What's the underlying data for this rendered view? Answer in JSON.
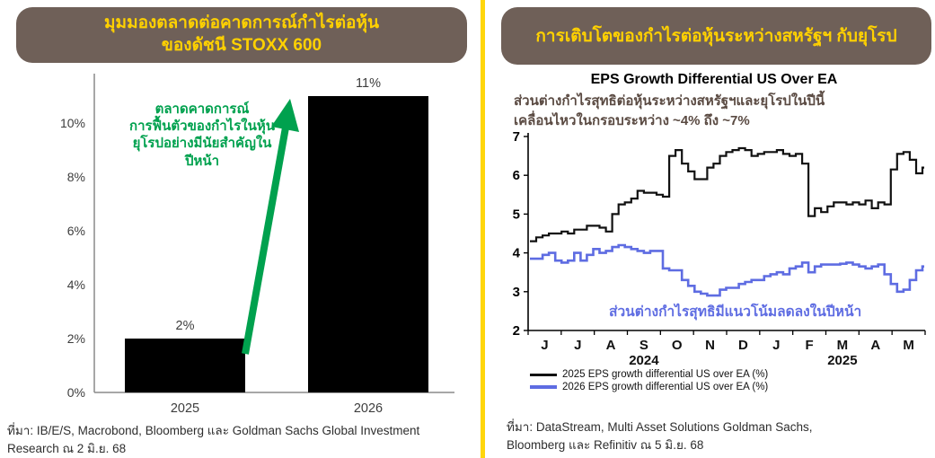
{
  "page": {
    "background": "#ffffff",
    "divider_color": "#ffd60a"
  },
  "left_panel": {
    "header": {
      "line1": "มุมมองตลาดต่อคาดการณ์กำไรต่อหุ้น",
      "line2": "ของดัชนี STOXX 600",
      "bg": "#6f6058",
      "text_color": "#ffd100"
    },
    "annotation": {
      "lines": [
        "ตลาดคาดการณ์",
        "การฟื้นตัวของกำไรในหุ้น",
        "ยุโรปอย่างมีนัยสำคัญใน",
        "ปีหน้า"
      ],
      "color": "#00a14e"
    },
    "source_line1": "ที่มา: IB/E/S, Macrobond, Bloomberg และ Goldman Sachs Global Investment",
    "source_line2": "Research  ณ 2 มิ.ย. 68"
  },
  "right_panel": {
    "header": {
      "text": "การเติบโตของกำไรต่อหุ้นระหว่างสหรัฐฯ กับยุโรป",
      "bg": "#6f6058",
      "text_color": "#ffd100"
    },
    "title": "EPS Growth Differential US Over EA",
    "annotation_top": {
      "line1": "ส่วนต่างกำไรสุทธิต่อหุ้นระหว่างสหรัฐฯและยุโรปในปีนี้",
      "line2": "เคลื่อนไหวในกรอบระหว่าง ~4% ถึง ~7%",
      "color": "#5a4a42"
    },
    "annotation_blue": {
      "text": "ส่วนต่างกำไรสุทธิมีแนวโน้มลดลงในปีหน้า",
      "color": "#5e6ce2"
    },
    "legend": [
      "2025 EPS growth differential US over EA (%)",
      "2026 EPS growth differential US over EA (%)"
    ],
    "source_line1": "ที่มา: DataStream, Multi Asset Solutions Goldman Sachs,",
    "source_line2": "Bloomberg และ Refinitiv ณ 5 มิ.ย. 68"
  },
  "chart_data": [
    {
      "type": "bar",
      "title": "มุมมองตลาดต่อคาดการณ์กำไรต่อหุ้นของดัชนี STOXX 600",
      "categories": [
        "2025",
        "2026"
      ],
      "values": [
        2,
        11
      ],
      "value_labels": [
        "2%",
        "11%"
      ],
      "yticks": [
        "0%",
        "2%",
        "4%",
        "6%",
        "8%",
        "10%"
      ],
      "ylim": [
        0,
        12
      ],
      "bar_color": "#000000",
      "grid": false,
      "annotation": "ตลาดคาดการณ์การฟื้นตัวของกำไรในหุ้นยุโรปอย่างมีนัยสำคัญในปีหน้า"
    },
    {
      "type": "line",
      "style": "step",
      "title": "EPS Growth Differential US Over EA",
      "x_months": [
        "J",
        "J",
        "A",
        "S",
        "O",
        "N",
        "D",
        "J",
        "F",
        "M",
        "A",
        "M"
      ],
      "x_years": [
        {
          "label": "2024",
          "month_index": 3
        },
        {
          "label": "2025",
          "month_index": 9
        }
      ],
      "yticks": [
        2,
        3,
        4,
        5,
        6,
        7
      ],
      "ylim": [
        2,
        7
      ],
      "legend_position": "bottom-left",
      "grid": false,
      "series": [
        {
          "name": "2025 EPS growth differential US over EA (%)",
          "color": "#111111",
          "values": [
            4.3,
            4.4,
            4.45,
            4.5,
            4.5,
            4.55,
            4.5,
            4.6,
            4.6,
            4.7,
            4.7,
            4.65,
            4.55,
            5.0,
            5.25,
            5.3,
            5.4,
            5.6,
            5.55,
            5.55,
            5.5,
            5.45,
            6.5,
            6.65,
            6.3,
            6.1,
            5.9,
            5.9,
            6.2,
            6.3,
            6.5,
            6.6,
            6.65,
            6.7,
            6.65,
            6.5,
            6.55,
            6.6,
            6.6,
            6.65,
            6.55,
            6.5,
            6.55,
            6.3,
            4.95,
            5.15,
            5.05,
            5.2,
            5.3,
            5.3,
            5.25,
            5.3,
            5.25,
            5.35,
            5.15,
            5.3,
            5.25,
            6.15,
            6.55,
            6.6,
            6.4,
            6.05,
            6.2
          ]
        },
        {
          "name": "2026 EPS growth differential US over EA (%)",
          "color": "#5e6ce2",
          "values": [
            3.85,
            3.85,
            3.95,
            4.0,
            3.8,
            3.75,
            3.8,
            4.0,
            3.8,
            3.95,
            4.1,
            4.0,
            4.05,
            4.15,
            4.2,
            4.15,
            4.1,
            4.05,
            4.0,
            4.05,
            4.05,
            3.6,
            3.55,
            3.55,
            3.3,
            3.15,
            3.0,
            2.95,
            2.9,
            2.9,
            3.05,
            3.1,
            3.1,
            3.2,
            3.25,
            3.3,
            3.3,
            3.4,
            3.45,
            3.5,
            3.45,
            3.6,
            3.65,
            3.75,
            3.5,
            3.65,
            3.7,
            3.7,
            3.7,
            3.72,
            3.75,
            3.7,
            3.65,
            3.6,
            3.65,
            3.7,
            3.45,
            3.2,
            3.0,
            3.05,
            3.3,
            3.55,
            3.65
          ]
        }
      ]
    }
  ]
}
